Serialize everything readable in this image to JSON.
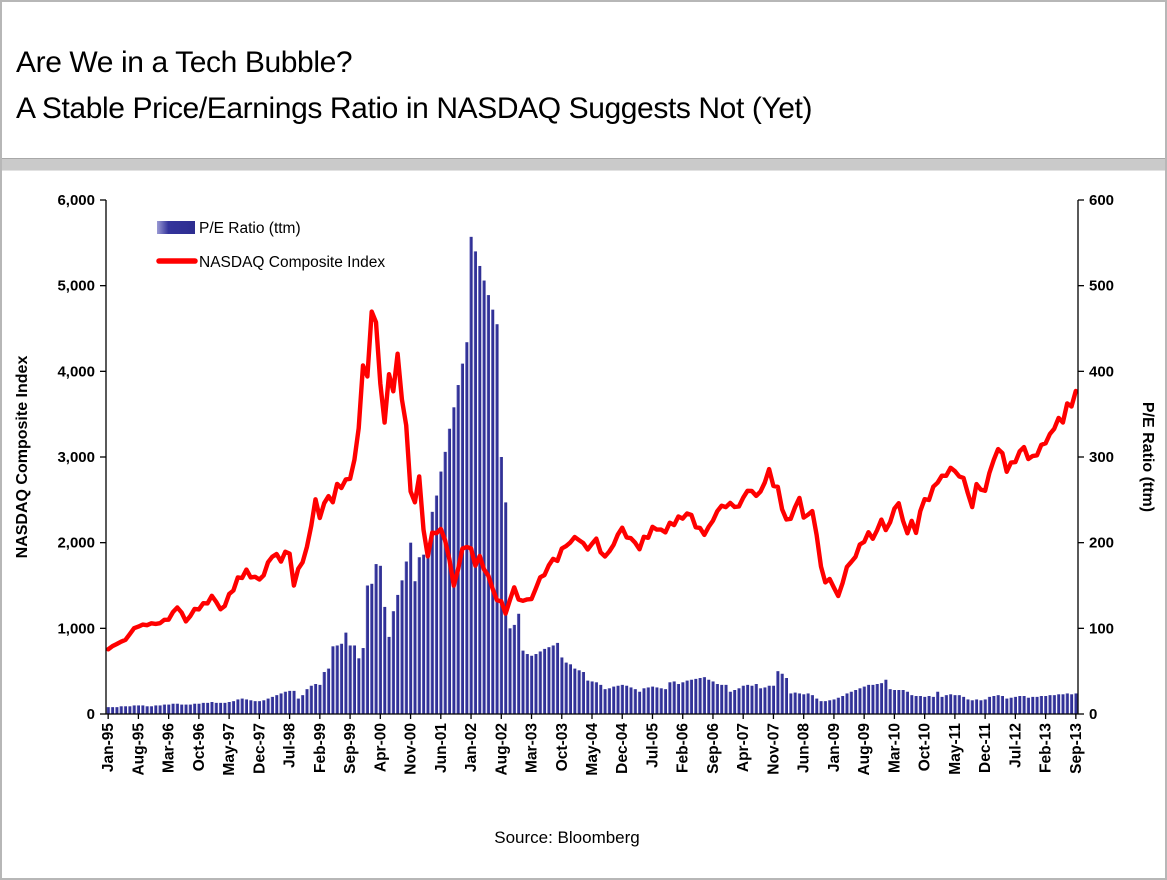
{
  "window": {
    "background": "#ffffff",
    "border_color": "#b7b7b7"
  },
  "header": {
    "title_line1": "Are We in a Tech Bubble?",
    "title_line2": "A Stable Price/Earnings Ratio in NASDAQ Suggests Not (Yet)",
    "divider_color": "#cacaca"
  },
  "footer": {
    "source_text": "Source: Bloomberg"
  },
  "legend": {
    "position": "top-left-inside",
    "items": [
      {
        "label": "P/E Ratio (ttm)",
        "type": "bar",
        "color": "#32329B"
      },
      {
        "label": "NASDAQ Composite Index",
        "type": "line",
        "color": "#FF0000"
      }
    ]
  },
  "chart_data": {
    "type": "combo",
    "subtype": [
      "bar",
      "line"
    ],
    "x_start": "Jan-1995",
    "x_end": "Sep-2013",
    "x_interval": "monthly",
    "n_points": 225,
    "x_tick_every": 7,
    "x_tick_labels": [
      "Jan-95",
      "Aug-95",
      "Mar-96",
      "Oct-96",
      "May-97",
      "Dec-97",
      "Jul-98",
      "Feb-99",
      "Sep-99",
      "Apr-00",
      "Nov-00",
      "Jun-01",
      "Jan-02",
      "Aug-02",
      "Mar-03",
      "Oct-03",
      "May-04",
      "Dec-04",
      "Jul-05",
      "Feb-06",
      "Sep-06",
      "Apr-07",
      "Nov-07",
      "Jun-08",
      "Jan-09",
      "Aug-09",
      "Mar-10",
      "Oct-10",
      "May-11",
      "Dec-11",
      "Jul-12",
      "Feb-13",
      "Sep-13"
    ],
    "grid": false,
    "left_axis": {
      "title": "NASDAQ Composite Index",
      "min": 0,
      "max": 6000,
      "step": 1000,
      "tick_labels": [
        "0",
        "1,000",
        "2,000",
        "3,000",
        "4,000",
        "5,000",
        "6,000"
      ]
    },
    "right_axis": {
      "title": "P/E Ratio (ttm)",
      "min": 0,
      "max": 600,
      "step": 100,
      "tick_labels": [
        "0",
        "100",
        "200",
        "300",
        "400",
        "500",
        "600"
      ]
    },
    "series": [
      {
        "name": "P/E Ratio (ttm)",
        "type": "bar",
        "axis": "right",
        "color": "#32329B",
        "values": [
          8,
          8,
          8,
          9,
          9,
          9,
          10,
          10,
          10,
          9,
          9,
          10,
          10,
          11,
          11,
          12,
          12,
          11,
          11,
          11,
          12,
          12,
          13,
          13,
          14,
          13,
          13,
          13,
          14,
          15,
          17,
          18,
          17,
          16,
          15,
          15,
          16,
          18,
          20,
          22,
          24,
          26,
          27,
          27,
          18,
          22,
          29,
          33,
          35,
          34,
          49,
          53,
          79,
          80,
          82,
          95,
          80,
          80,
          65,
          77,
          150,
          152,
          175,
          173,
          125,
          90,
          120,
          139,
          156,
          178,
          200,
          155,
          183,
          186,
          191,
          236,
          255,
          283,
          306,
          333,
          358,
          384,
          409,
          434,
          557,
          540,
          523,
          506,
          489,
          472,
          455,
          300,
          247,
          100,
          104,
          117,
          74,
          70,
          68,
          70,
          73,
          76,
          78,
          80,
          83,
          66,
          60,
          58,
          53,
          51,
          49,
          39,
          38,
          37,
          34,
          29,
          30,
          32,
          33,
          34,
          33,
          31,
          29,
          26,
          30,
          31,
          32,
          31,
          30,
          29,
          37,
          38,
          35,
          37,
          39,
          40,
          41,
          42,
          43,
          40,
          38,
          35,
          34,
          34,
          26,
          28,
          30,
          33,
          34,
          33,
          35,
          30,
          31,
          33,
          33,
          50,
          47,
          42,
          24,
          25,
          24,
          23,
          24,
          22,
          18,
          15,
          15,
          16,
          17,
          19,
          21,
          24,
          26,
          28,
          30,
          32,
          34,
          34,
          35,
          36,
          40,
          29,
          28,
          28,
          28,
          26,
          22,
          21,
          21,
          20,
          21,
          20,
          26,
          20,
          22,
          23,
          22,
          22,
          20,
          17,
          16,
          17,
          16,
          17,
          20,
          21,
          22,
          21,
          18,
          19,
          20,
          21,
          21,
          19,
          20,
          20,
          21,
          21,
          22,
          22,
          23,
          23,
          24,
          23,
          24
        ]
      },
      {
        "name": "NASDAQ Composite Index",
        "type": "line",
        "axis": "left",
        "color": "#FF0000",
        "values": [
          755,
          793,
          817,
          844,
          865,
          933,
          1001,
          1020,
          1044,
          1036,
          1059,
          1052,
          1060,
          1100,
          1101,
          1191,
          1243,
          1185,
          1081,
          1142,
          1227,
          1221,
          1293,
          1291,
          1380,
          1309,
          1222,
          1261,
          1400,
          1442,
          1594,
          1587,
          1686,
          1594,
          1601,
          1570,
          1619,
          1771,
          1836,
          1868,
          1779,
          1895,
          1872,
          1499,
          1694,
          1771,
          1950,
          2193,
          2506,
          2288,
          2461,
          2543,
          2471,
          2686,
          2638,
          2739,
          2746,
          2966,
          3336,
          4069,
          3940,
          4697,
          4573,
          3861,
          3401,
          3966,
          3767,
          4206,
          3673,
          3370,
          2598,
          2471,
          2773,
          2152,
          1840,
          2116,
          2110,
          2161,
          2027,
          1805,
          1498,
          1690,
          1931,
          1950,
          1934,
          1731,
          1845,
          1688,
          1616,
          1463,
          1328,
          1315,
          1172,
          1330,
          1479,
          1336,
          1321,
          1338,
          1341,
          1464,
          1596,
          1623,
          1735,
          1810,
          1787,
          1932,
          1960,
          2003,
          2066,
          2030,
          1994,
          1920,
          1987,
          2048,
          1887,
          1838,
          1897,
          1975,
          2097,
          2175,
          2062,
          2052,
          1999,
          1922,
          2068,
          2057,
          2185,
          2152,
          2152,
          2120,
          2233,
          2205,
          2306,
          2281,
          2340,
          2323,
          2179,
          2172,
          2091,
          2184,
          2258,
          2367,
          2432,
          2415,
          2464,
          2416,
          2422,
          2525,
          2605,
          2603,
          2546,
          2596,
          2702,
          2859,
          2661,
          2652,
          2390,
          2271,
          2279,
          2413,
          2523,
          2293,
          2326,
          2368,
          2092,
          1721,
          1536,
          1577,
          1476,
          1378,
          1529,
          1717,
          1774,
          1835,
          1979,
          2009,
          2122,
          2045,
          2145,
          2269,
          2147,
          2238,
          2398,
          2461,
          2257,
          2109,
          2255,
          2114,
          2369,
          2507,
          2498,
          2653,
          2700,
          2782,
          2781,
          2874,
          2835,
          2774,
          2756,
          2579,
          2415,
          2684,
          2620,
          2605,
          2814,
          2967,
          3092,
          3046,
          2827,
          2935,
          2940,
          3067,
          3116,
          2977,
          3010,
          3020,
          3142,
          3160,
          3268,
          3329,
          3456,
          3403,
          3626,
          3590,
          3771
        ]
      }
    ]
  }
}
